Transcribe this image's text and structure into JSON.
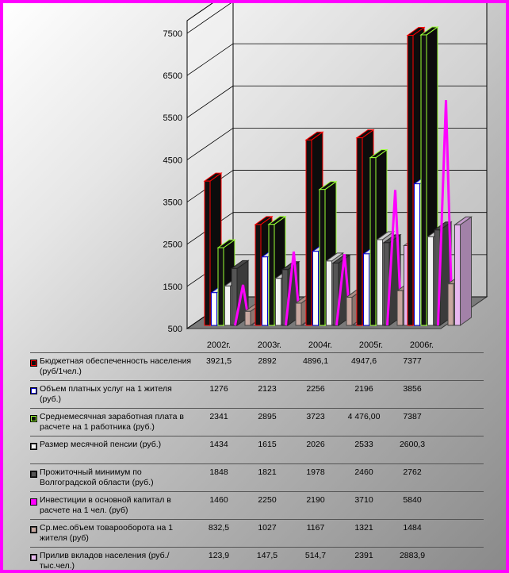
{
  "chart_data": {
    "type": "bar",
    "categories": [
      "2002г.",
      "2003г.",
      "2004г.",
      "2005г.",
      "2006г."
    ],
    "y_ticks": [
      "500",
      "1500",
      "2500",
      "3500",
      "4500",
      "5500",
      "6500",
      "7500"
    ],
    "ylim": [
      500,
      7800
    ],
    "series": [
      {
        "name": "Бюджетная обеспеченность населения (руб/1чел.)",
        "type": "bar",
        "color": "#111111",
        "edge": "#ff0000",
        "values": [
          3921.5,
          2892,
          4896.1,
          4947.6,
          7377
        ],
        "labels": [
          "3921,5",
          "2892",
          "4896,1",
          "4947,6",
          "7377"
        ]
      },
      {
        "name": "Объем платных услуг на 1 жителя (руб.)",
        "type": "bar",
        "color": "#ffffff",
        "edge": "#0000cc",
        "values": [
          1276,
          2123,
          2256,
          2196,
          3856
        ],
        "labels": [
          "1276",
          "2123",
          "2256",
          "2196",
          "3856"
        ]
      },
      {
        "name": "Среднемесячная заработная плата в расчете на 1 работника (руб.)",
        "type": "bar",
        "color": "#111111",
        "edge": "#99ff33",
        "values": [
          2341,
          2895,
          3723,
          4476,
          7387
        ],
        "labels": [
          "2341",
          "2895",
          "3723",
          "4 476,00",
          "7387"
        ]
      },
      {
        "name": "Размер месячной пенсии (руб.)",
        "type": "bar",
        "color": "#f2f2f2",
        "edge": "#444444",
        "values": [
          1434,
          1615,
          2026,
          2533,
          2600.3
        ],
        "labels": [
          "1434",
          "1615",
          "2026",
          "2533",
          "2600,3"
        ]
      },
      {
        "name": "Прожиточный минимум по Волгоградской области (руб.)",
        "type": "bar",
        "color": "#555555",
        "edge": "#222222",
        "values": [
          1848,
          1821,
          1978,
          2460,
          2762
        ],
        "labels": [
          "1848",
          "1821",
          "1978",
          "2460",
          "2762"
        ]
      },
      {
        "name": "Инвестиции в основной капитал в расчете на 1 чел. (руб)",
        "type": "spike",
        "color": "#ff00ff",
        "edge": "#ff00ff",
        "values": [
          1460,
          2250,
          2190,
          3710,
          5840
        ],
        "labels": [
          "1460",
          "2250",
          "2190",
          "3710",
          "5840"
        ]
      },
      {
        "name": "Ср.мес.объем товарооборота на 1 жителя (руб)",
        "type": "bar",
        "color": "#c8a8a0",
        "edge": "#444444",
        "values": [
          832.5,
          1027,
          1167,
          1321,
          1484
        ],
        "labels": [
          "832,5",
          "1027",
          "1167",
          "1321",
          "1484"
        ]
      },
      {
        "name": "Прилив вкладов населения (руб./тыс.чел.)",
        "type": "bar",
        "color": "#e8b8f0",
        "edge": "#444444",
        "values": [
          123.9,
          147.5,
          514.7,
          2391,
          2883.9
        ],
        "labels": [
          "123,9",
          "147,5",
          "514,7",
          "2391",
          "2883,9"
        ]
      }
    ]
  }
}
